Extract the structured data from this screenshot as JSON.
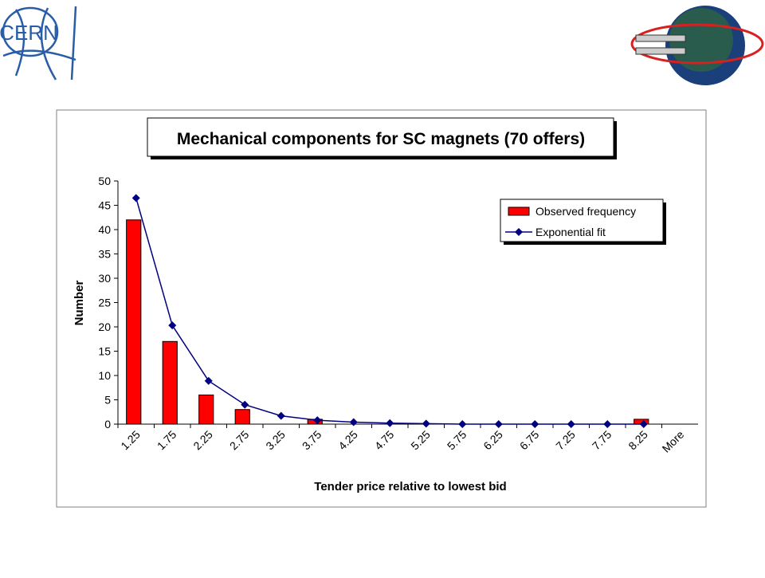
{
  "logo_text": "CERN",
  "chart_data": {
    "type": "bar",
    "title": "Mechanical components for SC magnets (70 offers)",
    "x_label": "Tender price relative to lowest bid",
    "y_label": "Number",
    "categories": [
      "1.25",
      "1.75",
      "2.25",
      "2.75",
      "3.25",
      "3.75",
      "4.25",
      "4.75",
      "5.25",
      "5.75",
      "6.25",
      "6.75",
      "7.25",
      "7.75",
      "8.25",
      "More"
    ],
    "series": [
      {
        "name": "Observed frequency",
        "type": "bar",
        "color": "#ff0000",
        "values": [
          42,
          17,
          6,
          3,
          0,
          1,
          0,
          0,
          0,
          0,
          0,
          0,
          0,
          0,
          1,
          0
        ]
      },
      {
        "name": "Exponential fit",
        "type": "line",
        "color": "#000080",
        "values": [
          46.5,
          20.3,
          8.9,
          4.0,
          1.7,
          0.8,
          0.4,
          0.2,
          0.1,
          0,
          0,
          0,
          0,
          0,
          0,
          null
        ]
      }
    ],
    "ylim": [
      0,
      50
    ],
    "yticks": [
      0,
      5,
      10,
      15,
      20,
      25,
      30,
      35,
      40,
      45,
      50
    ],
    "legend": "upper right",
    "grid": false
  }
}
